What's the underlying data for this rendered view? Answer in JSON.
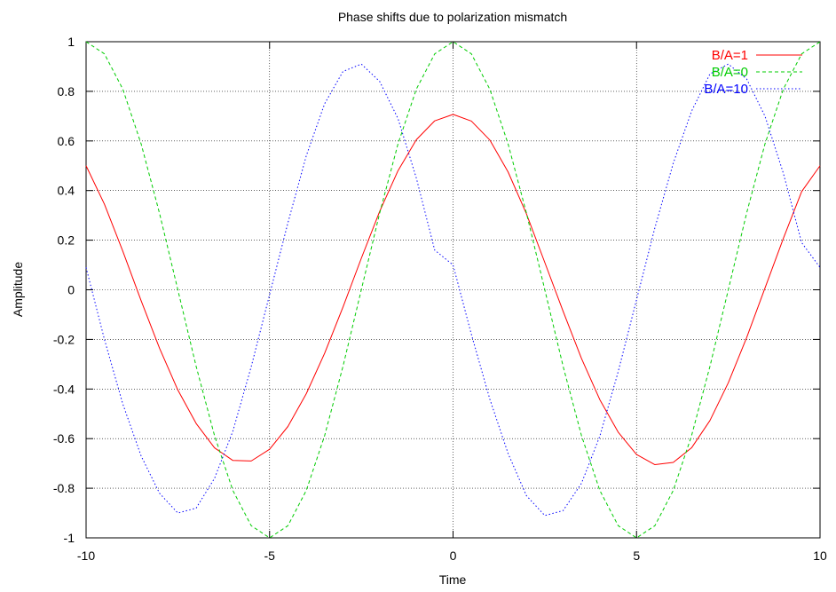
{
  "chart_data": {
    "type": "line",
    "title": "Phase shifts due to polarization mismatch",
    "xlabel": "Time",
    "ylabel": "Amplitude",
    "xlim": [
      -10,
      10
    ],
    "ylim": [
      -1,
      1
    ],
    "xticks": [
      -10,
      -5,
      0,
      5,
      10
    ],
    "yticks": [
      -1,
      -0.8,
      -0.6,
      -0.4,
      -0.2,
      0,
      0.2,
      0.4,
      0.6,
      0.8,
      1
    ],
    "grid": true,
    "legend_position": "top-right",
    "series": [
      {
        "name": "B/A=1",
        "color": "#ff0000",
        "dash": "solid",
        "x": [
          -10,
          -9.5,
          -9,
          -8.5,
          -8,
          -7.5,
          -7,
          -6.5,
          -6,
          -5.5,
          -5,
          -4.5,
          -4,
          -3.5,
          -3,
          -2.5,
          -2,
          -1.5,
          -1,
          -0.5,
          0,
          0.5,
          1,
          1.5,
          2,
          2.5,
          3,
          3.5,
          4,
          4.5,
          5,
          5.5,
          6,
          6.5,
          7,
          7.5,
          8,
          8.5,
          9,
          9.5,
          10
        ],
        "y": [
          0.5,
          0.345,
          0.156,
          -0.044,
          -0.235,
          -0.404,
          -0.539,
          -0.637,
          -0.688,
          -0.69,
          -0.643,
          -0.551,
          -0.419,
          -0.256,
          -0.07,
          0.127,
          0.316,
          0.48,
          0.605,
          0.681,
          0.707,
          0.68,
          0.604,
          0.475,
          0.306,
          0.11,
          -0.087,
          -0.277,
          -0.443,
          -0.574,
          -0.664,
          -0.705,
          -0.696,
          -0.637,
          -0.527,
          -0.375,
          -0.193,
          0.007,
          0.207,
          0.396,
          0.5
        ]
      },
      {
        "name": "B/A=0",
        "color": "#00cc00",
        "dash": "dashed",
        "x": [
          -10,
          -9.5,
          -9,
          -8.5,
          -8,
          -7.5,
          -7,
          -6.5,
          -6,
          -5.5,
          -5,
          -4.5,
          -4,
          -3.5,
          -3,
          -2.5,
          -2,
          -1.5,
          -1,
          -0.5,
          0,
          0.5,
          1,
          1.5,
          2,
          2.5,
          3,
          3.5,
          4,
          4.5,
          5,
          5.5,
          6,
          6.5,
          7,
          7.5,
          8,
          8.5,
          9,
          9.5,
          10
        ],
        "y": [
          1,
          0.951,
          0.809,
          0.588,
          0.309,
          0,
          -0.309,
          -0.588,
          -0.809,
          -0.951,
          -1,
          -0.951,
          -0.809,
          -0.588,
          -0.309,
          0,
          0.309,
          0.588,
          0.809,
          0.951,
          1,
          0.951,
          0.809,
          0.588,
          0.309,
          0,
          -0.309,
          -0.588,
          -0.809,
          -0.951,
          -1,
          -0.951,
          -0.809,
          -0.588,
          -0.309,
          0,
          0.309,
          0.588,
          0.809,
          0.951,
          1
        ]
      },
      {
        "name": "B/A=10",
        "color": "#0000ff",
        "dash": "dotted",
        "x": [
          -10,
          -9.5,
          -9,
          -8.5,
          -8,
          -7.5,
          -7,
          -6.5,
          -6,
          -5.5,
          -5,
          -4.5,
          -4,
          -3.5,
          -3,
          -2.5,
          -2,
          -1.5,
          -1,
          -0.5,
          0,
          0.5,
          1,
          1.5,
          2,
          2.5,
          3,
          3.5,
          4,
          4.5,
          5,
          5.5,
          6,
          6.5,
          7,
          7.5,
          8,
          8.5,
          9,
          9.5,
          10
        ],
        "y": [
          0.09,
          -0.2,
          -0.46,
          -0.67,
          -0.82,
          -0.9,
          -0.88,
          -0.76,
          -0.57,
          -0.31,
          -0.02,
          0.27,
          0.54,
          0.75,
          0.88,
          0.91,
          0.84,
          0.69,
          0.45,
          0.16,
          0.1,
          -0.18,
          -0.44,
          -0.66,
          -0.83,
          -0.91,
          -0.89,
          -0.78,
          -0.59,
          -0.33,
          -0.04,
          0.25,
          0.51,
          0.72,
          0.87,
          0.91,
          0.85,
          0.7,
          0.47,
          0.19,
          0.09
        ]
      }
    ]
  }
}
